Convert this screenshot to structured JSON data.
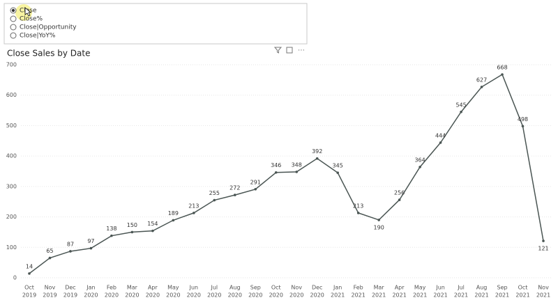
{
  "slicer": {
    "options": [
      "Close",
      "Close%",
      "Close|Opportunity",
      "Close|YoY%"
    ],
    "selected": 0
  },
  "chart_data": {
    "type": "line",
    "title": "Close Sales by Date",
    "categories": [
      [
        "Oct",
        "2019"
      ],
      [
        "Nov",
        "2019"
      ],
      [
        "Dec",
        "2019"
      ],
      [
        "Jan",
        "2020"
      ],
      [
        "Feb",
        "2020"
      ],
      [
        "Mar",
        "2020"
      ],
      [
        "Apr",
        "2020"
      ],
      [
        "May",
        "2020"
      ],
      [
        "Jun",
        "2020"
      ],
      [
        "Jul",
        "2020"
      ],
      [
        "Aug",
        "2020"
      ],
      [
        "Sep",
        "2020"
      ],
      [
        "Oct",
        "2020"
      ],
      [
        "Nov",
        "2020"
      ],
      [
        "Dec",
        "2020"
      ],
      [
        "Jan",
        "2021"
      ],
      [
        "Feb",
        "2021"
      ],
      [
        "Mar",
        "2021"
      ],
      [
        "Apr",
        "2021"
      ],
      [
        "May",
        "2021"
      ],
      [
        "Jun",
        "2021"
      ],
      [
        "Jul",
        "2021"
      ],
      [
        "Aug",
        "2021"
      ],
      [
        "Sep",
        "2021"
      ],
      [
        "Oct",
        "2021"
      ],
      [
        "Nov",
        "2021"
      ]
    ],
    "values": [
      14,
      65,
      87,
      97,
      138,
      150,
      154,
      189,
      213,
      255,
      272,
      291,
      346,
      348,
      392,
      345,
      213,
      190,
      256,
      364,
      444,
      545,
      627,
      668,
      498,
      121
    ],
    "color": "#4a5553",
    "ylim": [
      0,
      700
    ],
    "yticks": [
      0,
      100,
      200,
      300,
      400,
      500,
      600,
      700
    ],
    "grid": true
  }
}
